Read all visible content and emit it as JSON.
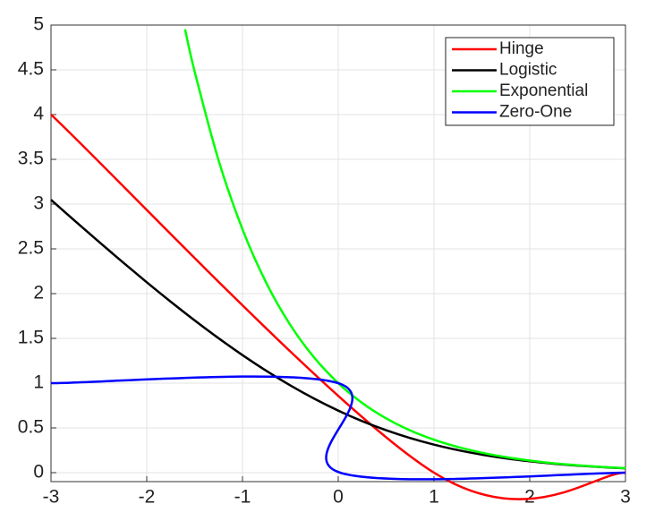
{
  "chart_data": {
    "type": "line",
    "xlim": [
      -3,
      3
    ],
    "ylim": [
      -0.1,
      5
    ],
    "xticks": [
      -3,
      -2,
      -1,
      0,
      1,
      2,
      3
    ],
    "yticks": [
      0,
      0.5,
      1,
      1.5,
      2,
      2.5,
      3,
      3.5,
      4,
      4.5,
      5
    ],
    "grid": true,
    "legend": "top-right",
    "series": [
      {
        "name": "Hinge",
        "color": "#ff0000",
        "x": [
          -3,
          1,
          3
        ],
        "values": [
          4,
          0,
          0
        ]
      },
      {
        "name": "Logistic",
        "color": "#000000",
        "x": [
          -3,
          -2.75,
          -2.5,
          -2.25,
          -2,
          -1.75,
          -1.5,
          -1.25,
          -1,
          -0.75,
          -0.5,
          -0.25,
          0,
          0.25,
          0.5,
          0.75,
          1,
          1.25,
          1.5,
          1.75,
          2,
          2.25,
          2.5,
          2.75,
          3
        ],
        "values": [
          3.0486,
          2.812,
          2.5789,
          2.3502,
          2.1269,
          1.9102,
          1.7014,
          1.5019,
          1.3133,
          1.1369,
          0.9741,
          0.8259,
          0.6931,
          0.5759,
          0.4741,
          0.3869,
          0.3133,
          0.2519,
          0.2014,
          0.1602,
          0.1269,
          0.1002,
          0.0789,
          0.062,
          0.0486
        ]
      },
      {
        "name": "Exponential",
        "color": "#00ff00",
        "x": [
          -1.6,
          -1.5,
          -1.25,
          -1,
          -0.75,
          -0.5,
          -0.25,
          0,
          0.25,
          0.5,
          0.75,
          1,
          1.25,
          1.5,
          1.75,
          2,
          2.25,
          2.5,
          2.75,
          3
        ],
        "values": [
          4.953,
          4.4817,
          3.4903,
          2.7183,
          2.117,
          1.6487,
          1.284,
          1,
          0.7788,
          0.6065,
          0.4724,
          0.3679,
          0.2865,
          0.2231,
          0.1738,
          0.1353,
          0.1054,
          0.0821,
          0.0639,
          0.0498
        ]
      },
      {
        "name": "Zero-One",
        "color": "#0000ff",
        "x": [
          -3,
          0,
          0.02,
          3
        ],
        "values": [
          1,
          1,
          0,
          0
        ]
      }
    ]
  }
}
